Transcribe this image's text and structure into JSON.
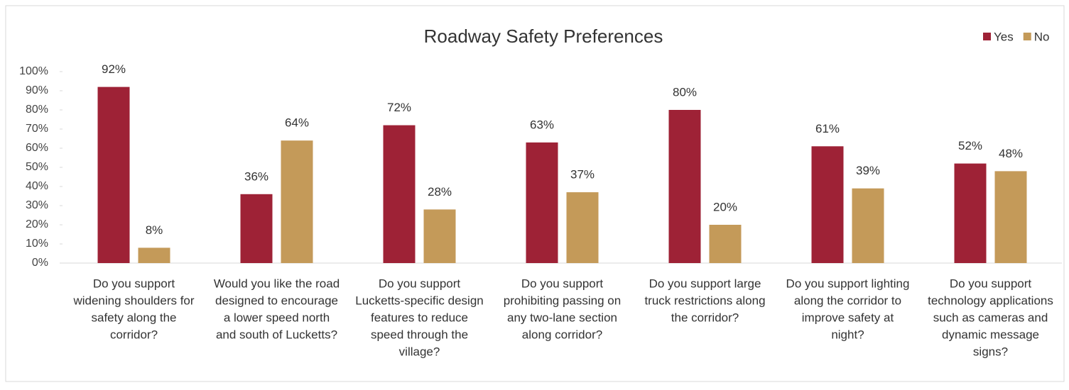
{
  "chart_data": {
    "type": "bar",
    "title": "Roadway Safety Preferences",
    "categories": [
      [
        "Do you support",
        "widening shoulders for",
        "safety along the",
        "corridor?"
      ],
      [
        "Would you like the road",
        "designed to encourage",
        "a lower speed north",
        "and south of Lucketts?"
      ],
      [
        "Do you support",
        "Lucketts-specific design",
        "features to reduce",
        "speed through the",
        "village?"
      ],
      [
        "Do you support",
        "prohibiting passing on",
        "any two-lane section",
        "along corridor?"
      ],
      [
        "Do you support large",
        "truck restrictions along",
        "the corridor?"
      ],
      [
        "Do you support lighting",
        "along the corridor to",
        "improve safety at",
        "night?"
      ],
      [
        "Do you support",
        "technology applications",
        "such as cameras and",
        "dynamic message",
        "signs?"
      ]
    ],
    "series": [
      {
        "name": "Yes",
        "color": "#9e2236",
        "values": [
          92,
          36,
          72,
          63,
          80,
          61,
          52
        ],
        "value_labels": [
          "92%",
          "36%",
          "72%",
          "63%",
          "80%",
          "61%",
          "52%"
        ]
      },
      {
        "name": "No",
        "color": "#c49a59",
        "values": [
          8,
          64,
          28,
          37,
          20,
          39,
          48
        ],
        "value_labels": [
          "8%",
          "64%",
          "28%",
          "37%",
          "20%",
          "39%",
          "48%"
        ]
      }
    ],
    "ylim": [
      0,
      100
    ],
    "yticks": [
      {
        "value": 0,
        "label": "0%"
      },
      {
        "value": 10,
        "label": "10%"
      },
      {
        "value": 20,
        "label": "20%"
      },
      {
        "value": 30,
        "label": "30%"
      },
      {
        "value": 40,
        "label": "40%"
      },
      {
        "value": 50,
        "label": "50%"
      },
      {
        "value": 60,
        "label": "60%"
      },
      {
        "value": 70,
        "label": "70%"
      },
      {
        "value": 80,
        "label": "80%"
      },
      {
        "value": 90,
        "label": "90%"
      },
      {
        "value": 100,
        "label": "100%"
      }
    ],
    "grid": false,
    "legend": "top-right"
  }
}
